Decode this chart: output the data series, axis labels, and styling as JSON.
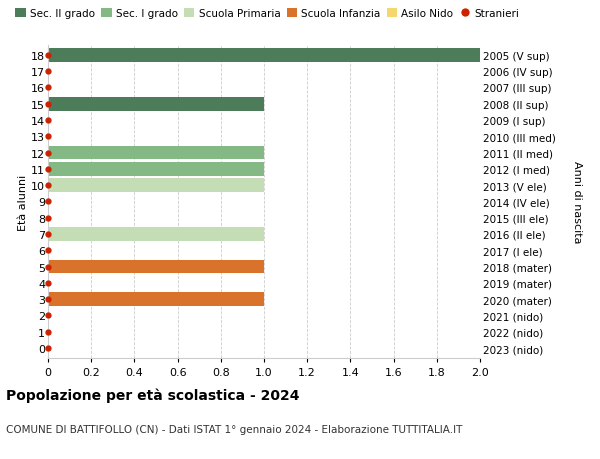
{
  "ages": [
    0,
    1,
    2,
    3,
    4,
    5,
    6,
    7,
    8,
    9,
    10,
    11,
    12,
    13,
    14,
    15,
    16,
    17,
    18
  ],
  "right_labels": [
    "2023 (nido)",
    "2022 (nido)",
    "2021 (nido)",
    "2020 (mater)",
    "2019 (mater)",
    "2018 (mater)",
    "2017 (I ele)",
    "2016 (II ele)",
    "2015 (III ele)",
    "2014 (IV ele)",
    "2013 (V ele)",
    "2012 (I med)",
    "2011 (II med)",
    "2010 (III med)",
    "2009 (I sup)",
    "2008 (II sup)",
    "2007 (III sup)",
    "2006 (IV sup)",
    "2005 (V sup)"
  ],
  "bars": [
    {
      "age": 18,
      "value": 2.0,
      "color": "#4d7c5a"
    },
    {
      "age": 15,
      "value": 1.0,
      "color": "#4d7c5a"
    },
    {
      "age": 12,
      "value": 1.0,
      "color": "#84b884"
    },
    {
      "age": 11,
      "value": 1.0,
      "color": "#84b884"
    },
    {
      "age": 10,
      "value": 1.0,
      "color": "#c5ddb5"
    },
    {
      "age": 7,
      "value": 1.0,
      "color": "#c5ddb5"
    },
    {
      "age": 5,
      "value": 1.0,
      "color": "#d9722a"
    },
    {
      "age": 3,
      "value": 1.0,
      "color": "#d9722a"
    }
  ],
  "stranieri_color": "#cc2200",
  "colors": {
    "Sec. II grado": "#4d7c5a",
    "Sec. I grado": "#84b884",
    "Scuola Primaria": "#c5ddb5",
    "Scuola Infanzia": "#d9722a",
    "Asilo Nido": "#f5d76e",
    "Stranieri": "#cc2200"
  },
  "legend_order": [
    "Sec. II grado",
    "Sec. I grado",
    "Scuola Primaria",
    "Scuola Infanzia",
    "Asilo Nido",
    "Stranieri"
  ],
  "xlim": [
    0,
    2.0
  ],
  "xticks": [
    0,
    0.2,
    0.4,
    0.6,
    0.8,
    1.0,
    1.2,
    1.4,
    1.6,
    1.8,
    2.0
  ],
  "ylabel_left": "Età alunni",
  "ylabel_right": "Anni di nascita",
  "title": "Popolazione per età scolastica - 2024",
  "subtitle": "COMUNE DI BATTIFOLLO (CN) - Dati ISTAT 1° gennaio 2024 - Elaborazione TUTTITALIA.IT",
  "bar_height": 0.85,
  "background_color": "#ffffff",
  "grid_color": "#cccccc"
}
